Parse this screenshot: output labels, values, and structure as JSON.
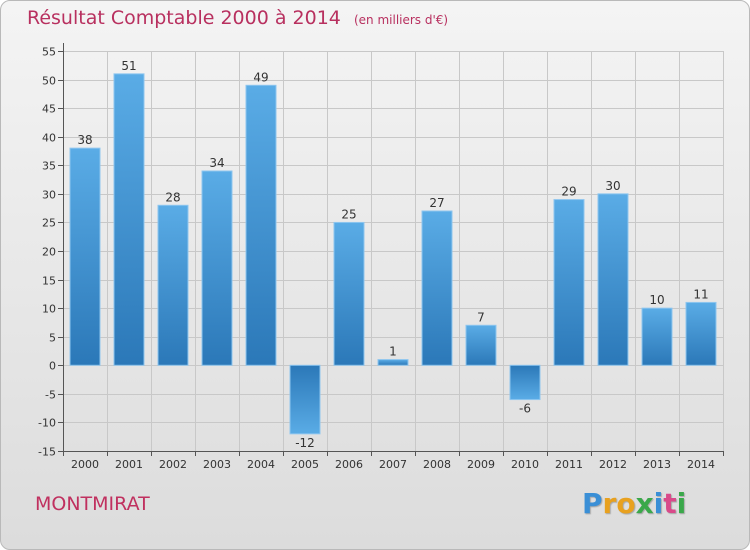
{
  "chart_data": {
    "type": "bar",
    "title": "Résultat Comptable 2000 à 2014",
    "subtitle": "(en milliers d'€)",
    "categories": [
      "2000",
      "2001",
      "2002",
      "2003",
      "2004",
      "2005",
      "2006",
      "2007",
      "2008",
      "2009",
      "2010",
      "2011",
      "2012",
      "2013",
      "2014"
    ],
    "values": [
      38,
      51,
      28,
      34,
      49,
      -12,
      25,
      1,
      27,
      7,
      -6,
      29,
      30,
      10,
      11
    ],
    "ylim": [
      -15,
      55
    ],
    "yticks": [
      -15,
      -10,
      -5,
      0,
      5,
      10,
      15,
      20,
      25,
      30,
      35,
      40,
      45,
      50,
      55
    ],
    "grid": true,
    "legend": "none",
    "bar_color_light": "#5aace6",
    "bar_color_dark": "#2b78b8"
  },
  "footer": {
    "town": "MONTMIRAT",
    "brand_letters": [
      "P",
      "r",
      "o",
      "x",
      "i",
      "t",
      "i"
    ],
    "brand_colors": [
      "#3a8fd6",
      "#e8a11f",
      "#e8a11f",
      "#3aa84a",
      "#3a8fd6",
      "#d94a8a",
      "#3aa84a"
    ]
  }
}
